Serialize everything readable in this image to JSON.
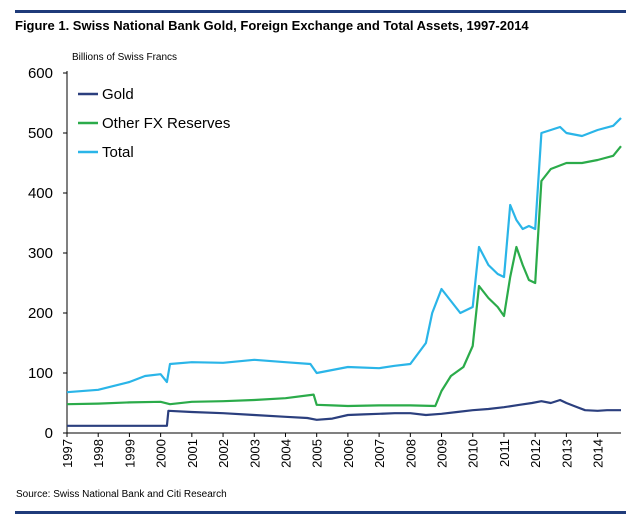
{
  "figure": {
    "title": "Figure 1. Swiss National Bank Gold, Foreign Exchange and Total Assets, 1997-2014",
    "units_label": "Billions of Swiss Francs",
    "source": "Source: Swiss National Bank and Citi Research"
  },
  "colors": {
    "rule": "#1f3b7a",
    "gold": "#2b3f7e",
    "other_fx": "#2bab4a",
    "total": "#2ab5e8"
  },
  "chart_data": {
    "type": "line",
    "title": "Figure 1. Swiss National Bank Gold, Foreign Exchange and Total Assets, 1997-2014",
    "ylabel": "Billions of Swiss Francs",
    "xlabel": "",
    "xlim": [
      1997,
      2014.75
    ],
    "ylim": [
      0,
      600
    ],
    "y_ticks": [
      "0",
      "100",
      "200",
      "300",
      "400",
      "500",
      "600"
    ],
    "x_ticks": [
      "1997",
      "1998",
      "1999",
      "2000",
      "2001",
      "2002",
      "2003",
      "2004",
      "2005",
      "2006",
      "2007",
      "2008",
      "2009",
      "2010",
      "2011",
      "2012",
      "2013",
      "2014"
    ],
    "grid": false,
    "legend_position": "top-left",
    "series": [
      {
        "name": "Gold",
        "color": "#2b3f7e",
        "points": [
          [
            1997,
            12
          ],
          [
            1999,
            12
          ],
          [
            2000.2,
            12
          ],
          [
            2000.25,
            37
          ],
          [
            2001,
            35
          ],
          [
            2002,
            33
          ],
          [
            2003,
            30
          ],
          [
            2004,
            27
          ],
          [
            2004.7,
            25
          ],
          [
            2005,
            22
          ],
          [
            2005.5,
            24
          ],
          [
            2006,
            30
          ],
          [
            2006.5,
            31
          ],
          [
            2007,
            32
          ],
          [
            2007.5,
            33
          ],
          [
            2008,
            33
          ],
          [
            2008.5,
            30
          ],
          [
            2009,
            32
          ],
          [
            2009.5,
            35
          ],
          [
            2010,
            38
          ],
          [
            2010.5,
            40
          ],
          [
            2011,
            43
          ],
          [
            2011.5,
            47
          ],
          [
            2011.9,
            50
          ],
          [
            2012.2,
            53
          ],
          [
            2012.5,
            50
          ],
          [
            2012.8,
            55
          ],
          [
            2013,
            50
          ],
          [
            2013.3,
            44
          ],
          [
            2013.6,
            38
          ],
          [
            2014,
            37
          ],
          [
            2014.3,
            38
          ],
          [
            2014.75,
            38
          ]
        ]
      },
      {
        "name": "Other FX Reserves",
        "color": "#2bab4a",
        "points": [
          [
            1997,
            48
          ],
          [
            1998,
            49
          ],
          [
            1999,
            51
          ],
          [
            2000,
            52
          ],
          [
            2000.3,
            48
          ],
          [
            2001,
            52
          ],
          [
            2002,
            53
          ],
          [
            2003,
            55
          ],
          [
            2004,
            58
          ],
          [
            2004.9,
            64
          ],
          [
            2005,
            47
          ],
          [
            2005.5,
            46
          ],
          [
            2006,
            45
          ],
          [
            2007,
            46
          ],
          [
            2008,
            46
          ],
          [
            2008.8,
            45
          ],
          [
            2009,
            70
          ],
          [
            2009.3,
            95
          ],
          [
            2009.7,
            110
          ],
          [
            2010,
            145
          ],
          [
            2010.2,
            245
          ],
          [
            2010.5,
            225
          ],
          [
            2010.8,
            210
          ],
          [
            2011,
            195
          ],
          [
            2011.2,
            260
          ],
          [
            2011.4,
            310
          ],
          [
            2011.6,
            280
          ],
          [
            2011.8,
            255
          ],
          [
            2012,
            250
          ],
          [
            2012.2,
            420
          ],
          [
            2012.5,
            440
          ],
          [
            2013,
            450
          ],
          [
            2013.5,
            450
          ],
          [
            2014,
            455
          ],
          [
            2014.5,
            462
          ],
          [
            2014.75,
            478
          ]
        ]
      },
      {
        "name": "Total",
        "color": "#2ab5e8",
        "points": [
          [
            1997,
            68
          ],
          [
            1998,
            72
          ],
          [
            1999,
            85
          ],
          [
            1999.5,
            95
          ],
          [
            2000,
            98
          ],
          [
            2000.2,
            85
          ],
          [
            2000.3,
            115
          ],
          [
            2001,
            118
          ],
          [
            2002,
            117
          ],
          [
            2003,
            122
          ],
          [
            2004,
            118
          ],
          [
            2004.8,
            115
          ],
          [
            2005,
            100
          ],
          [
            2005.5,
            105
          ],
          [
            2006,
            110
          ],
          [
            2007,
            108
          ],
          [
            2007.5,
            112
          ],
          [
            2008,
            115
          ],
          [
            2008.5,
            150
          ],
          [
            2008.7,
            200
          ],
          [
            2009,
            240
          ],
          [
            2009.3,
            220
          ],
          [
            2009.6,
            200
          ],
          [
            2010,
            210
          ],
          [
            2010.2,
            310
          ],
          [
            2010.5,
            280
          ],
          [
            2010.8,
            265
          ],
          [
            2011,
            260
          ],
          [
            2011.2,
            380
          ],
          [
            2011.4,
            355
          ],
          [
            2011.6,
            340
          ],
          [
            2011.8,
            345
          ],
          [
            2012,
            340
          ],
          [
            2012.2,
            500
          ],
          [
            2012.5,
            505
          ],
          [
            2012.8,
            510
          ],
          [
            2013,
            500
          ],
          [
            2013.5,
            495
          ],
          [
            2014,
            505
          ],
          [
            2014.5,
            512
          ],
          [
            2014.75,
            525
          ]
        ]
      }
    ]
  }
}
